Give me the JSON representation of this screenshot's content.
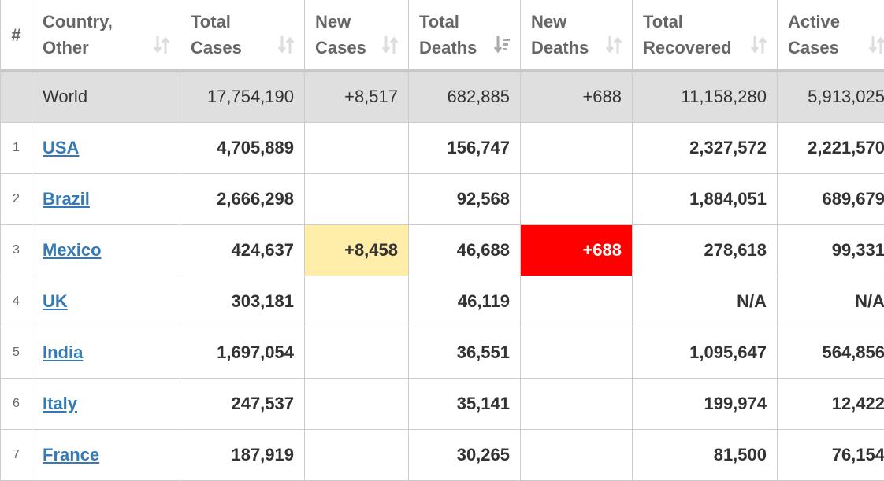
{
  "headers": [
    "#",
    "Country, Other",
    "Total Cases",
    "New Cases",
    "Total Deaths",
    "New Deaths",
    "Total Recovered",
    "Active Cases"
  ],
  "header_lines": [
    [
      "#"
    ],
    [
      "Country,",
      "Other"
    ],
    [
      "Total",
      "Cases"
    ],
    [
      "New",
      "Cases"
    ],
    [
      "Total",
      "Deaths"
    ],
    [
      "New",
      "Deaths"
    ],
    [
      "Total",
      "Recovered"
    ],
    [
      "Active",
      "Cases"
    ]
  ],
  "sorted_column": "Total Deaths",
  "sort_direction": "descending",
  "colors": {
    "new_cases_highlight": "#ffeeaa",
    "new_deaths_highlight": "#ff0000",
    "link": "#337ab7",
    "world_row": "#dfdfdf"
  },
  "world": {
    "country": "World",
    "total_cases": "17,754,190",
    "new_cases": "+8,517",
    "total_deaths": "682,885",
    "new_deaths": "+688",
    "total_recovered": "11,158,280",
    "active_cases": "5,913,025"
  },
  "rows": [
    {
      "rank": "1",
      "country": "USA",
      "total_cases": "4,705,889",
      "new_cases": "",
      "total_deaths": "156,747",
      "new_deaths": "",
      "total_recovered": "2,327,572",
      "active_cases": "2,221,570"
    },
    {
      "rank": "2",
      "country": "Brazil",
      "total_cases": "2,666,298",
      "new_cases": "",
      "total_deaths": "92,568",
      "new_deaths": "",
      "total_recovered": "1,884,051",
      "active_cases": "689,679"
    },
    {
      "rank": "3",
      "country": "Mexico",
      "total_cases": "424,637",
      "new_cases": "+8,458",
      "total_deaths": "46,688",
      "new_deaths": "+688",
      "total_recovered": "278,618",
      "active_cases": "99,331"
    },
    {
      "rank": "4",
      "country": "UK",
      "total_cases": "303,181",
      "new_cases": "",
      "total_deaths": "46,119",
      "new_deaths": "",
      "total_recovered": "N/A",
      "active_cases": "N/A"
    },
    {
      "rank": "5",
      "country": "India",
      "total_cases": "1,697,054",
      "new_cases": "",
      "total_deaths": "36,551",
      "new_deaths": "",
      "total_recovered": "1,095,647",
      "active_cases": "564,856"
    },
    {
      "rank": "6",
      "country": "Italy",
      "total_cases": "247,537",
      "new_cases": "",
      "total_deaths": "35,141",
      "new_deaths": "",
      "total_recovered": "199,974",
      "active_cases": "12,422"
    },
    {
      "rank": "7",
      "country": "France",
      "total_cases": "187,919",
      "new_cases": "",
      "total_deaths": "30,265",
      "new_deaths": "",
      "total_recovered": "81,500",
      "active_cases": "76,154"
    }
  ]
}
